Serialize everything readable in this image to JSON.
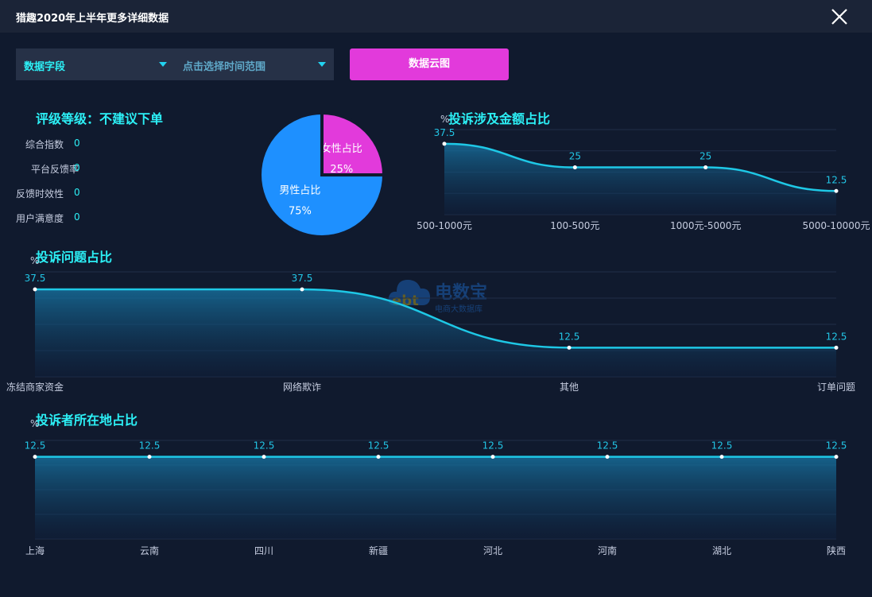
{
  "window": {
    "title": "猎趣2020年上半年更多详细数据"
  },
  "toolbar": {
    "field_select": "数据字段",
    "time_select": "点击选择时间范围",
    "cloud_button": "数据云图"
  },
  "rating": {
    "title": "评级等级：不建议下单",
    "metrics": [
      {
        "label": "综合指数",
        "value": "0"
      },
      {
        "label": "平台反馈率",
        "value": "0"
      },
      {
        "label": "反馈时效性",
        "value": "0"
      },
      {
        "label": "用户满意度",
        "value": "0"
      }
    ]
  },
  "watermark": {
    "brand": "电数宝",
    "subtitle": "电商大数据库",
    "logo_text": "ebt"
  },
  "colors": {
    "accent_cyan": "#2cf0f6",
    "line": "#1ec8e6",
    "female": "#e23adb",
    "male": "#1e90ff",
    "button": "#e23adb"
  },
  "chart_data": [
    {
      "id": "gender",
      "type": "pie",
      "labels": [
        "女性占比",
        "男性占比"
      ],
      "values": [
        25,
        75
      ],
      "value_labels": [
        "25%",
        "75%"
      ],
      "colors": [
        "#e23adb",
        "#1e90ff"
      ]
    },
    {
      "id": "amount",
      "type": "area",
      "title": "投诉涉及金额占比",
      "ylabel": "%",
      "categories": [
        "500-1000元",
        "100-500元",
        "1000元-5000元",
        "5000-10000元"
      ],
      "values": [
        37.5,
        25,
        25,
        12.5
      ],
      "ylim": [
        0,
        45
      ]
    },
    {
      "id": "issue",
      "type": "area",
      "title": "投诉问题占比",
      "ylabel": "%",
      "categories": [
        "冻结商家资金",
        "网络欺诈",
        "其他",
        "订单问题"
      ],
      "values": [
        37.5,
        37.5,
        12.5,
        12.5
      ],
      "ylim": [
        0,
        45
      ]
    },
    {
      "id": "region",
      "type": "area",
      "title": "投诉者所在地占比",
      "ylabel": "%",
      "categories": [
        "上海",
        "云南",
        "四川",
        "新疆",
        "河北",
        "河南",
        "湖北",
        "陕西"
      ],
      "values": [
        12.5,
        12.5,
        12.5,
        12.5,
        12.5,
        12.5,
        12.5,
        12.5
      ],
      "ylim": [
        0,
        15
      ]
    }
  ]
}
